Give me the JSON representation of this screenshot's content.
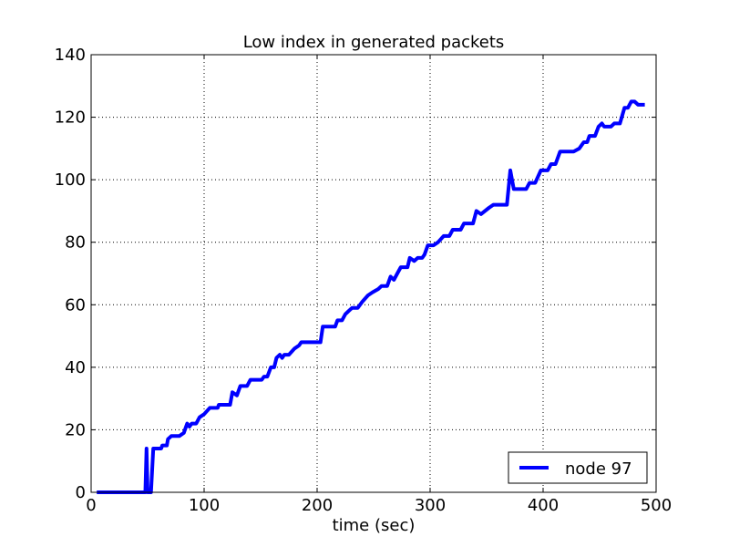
{
  "chart_data": {
    "type": "line",
    "title": "Low index in generated packets",
    "xlabel": "time (sec)",
    "ylabel": "",
    "xlim": [
      0,
      500
    ],
    "ylim": [
      0,
      140
    ],
    "xticks": [
      0,
      100,
      200,
      300,
      400,
      500
    ],
    "yticks": [
      0,
      20,
      40,
      60,
      80,
      100,
      120,
      140
    ],
    "grid": true,
    "legend_position": "lower-right",
    "series": [
      {
        "name": "node 97",
        "color": "#0000ff",
        "points": [
          [
            5,
            0
          ],
          [
            48,
            0
          ],
          [
            49,
            14
          ],
          [
            50,
            0
          ],
          [
            53,
            0
          ],
          [
            55,
            14
          ],
          [
            62,
            14
          ],
          [
            63,
            15
          ],
          [
            67,
            15
          ],
          [
            68,
            17
          ],
          [
            71,
            18
          ],
          [
            78,
            18
          ],
          [
            82,
            19
          ],
          [
            85,
            22
          ],
          [
            87,
            21
          ],
          [
            89,
            22
          ],
          [
            93,
            22
          ],
          [
            96,
            24
          ],
          [
            100,
            25
          ],
          [
            105,
            27
          ],
          [
            112,
            27
          ],
          [
            113,
            28
          ],
          [
            123,
            28
          ],
          [
            125,
            32
          ],
          [
            129,
            31
          ],
          [
            132,
            34
          ],
          [
            138,
            34
          ],
          [
            141,
            36
          ],
          [
            151,
            36
          ],
          [
            153,
            37
          ],
          [
            156,
            37
          ],
          [
            159,
            40
          ],
          [
            162,
            40
          ],
          [
            164,
            43
          ],
          [
            167,
            44
          ],
          [
            169,
            43
          ],
          [
            171,
            44
          ],
          [
            175,
            44
          ],
          [
            180,
            46
          ],
          [
            184,
            47
          ],
          [
            186,
            48
          ],
          [
            203,
            48
          ],
          [
            205,
            53
          ],
          [
            216,
            53
          ],
          [
            218,
            55
          ],
          [
            222,
            55
          ],
          [
            225,
            57
          ],
          [
            228,
            58
          ],
          [
            231,
            59
          ],
          [
            236,
            59
          ],
          [
            240,
            61
          ],
          [
            245,
            63
          ],
          [
            249,
            64
          ],
          [
            254,
            65
          ],
          [
            257,
            66
          ],
          [
            262,
            66
          ],
          [
            265,
            69
          ],
          [
            268,
            68
          ],
          [
            271,
            70
          ],
          [
            274,
            72
          ],
          [
            280,
            72
          ],
          [
            282,
            75
          ],
          [
            286,
            74
          ],
          [
            289,
            75
          ],
          [
            293,
            75
          ],
          [
            295,
            76
          ],
          [
            298,
            79
          ],
          [
            303,
            79
          ],
          [
            307,
            80
          ],
          [
            312,
            82
          ],
          [
            317,
            82
          ],
          [
            320,
            84
          ],
          [
            327,
            84
          ],
          [
            330,
            86
          ],
          [
            338,
            86
          ],
          [
            341,
            90
          ],
          [
            345,
            89
          ],
          [
            352,
            91
          ],
          [
            356,
            92
          ],
          [
            368,
            92
          ],
          [
            371,
            103
          ],
          [
            374,
            97
          ],
          [
            385,
            97
          ],
          [
            388,
            99
          ],
          [
            393,
            99
          ],
          [
            398,
            103
          ],
          [
            404,
            103
          ],
          [
            407,
            105
          ],
          [
            411,
            105
          ],
          [
            415,
            109
          ],
          [
            427,
            109
          ],
          [
            432,
            110
          ],
          [
            436,
            112
          ],
          [
            439,
            112
          ],
          [
            441,
            114
          ],
          [
            446,
            114
          ],
          [
            449,
            117
          ],
          [
            452,
            118
          ],
          [
            454,
            117
          ],
          [
            460,
            117
          ],
          [
            463,
            118
          ],
          [
            468,
            118
          ],
          [
            472,
            123
          ],
          [
            475,
            123
          ],
          [
            478,
            125
          ],
          [
            481,
            125
          ],
          [
            484,
            124
          ],
          [
            490,
            124
          ]
        ]
      }
    ]
  }
}
